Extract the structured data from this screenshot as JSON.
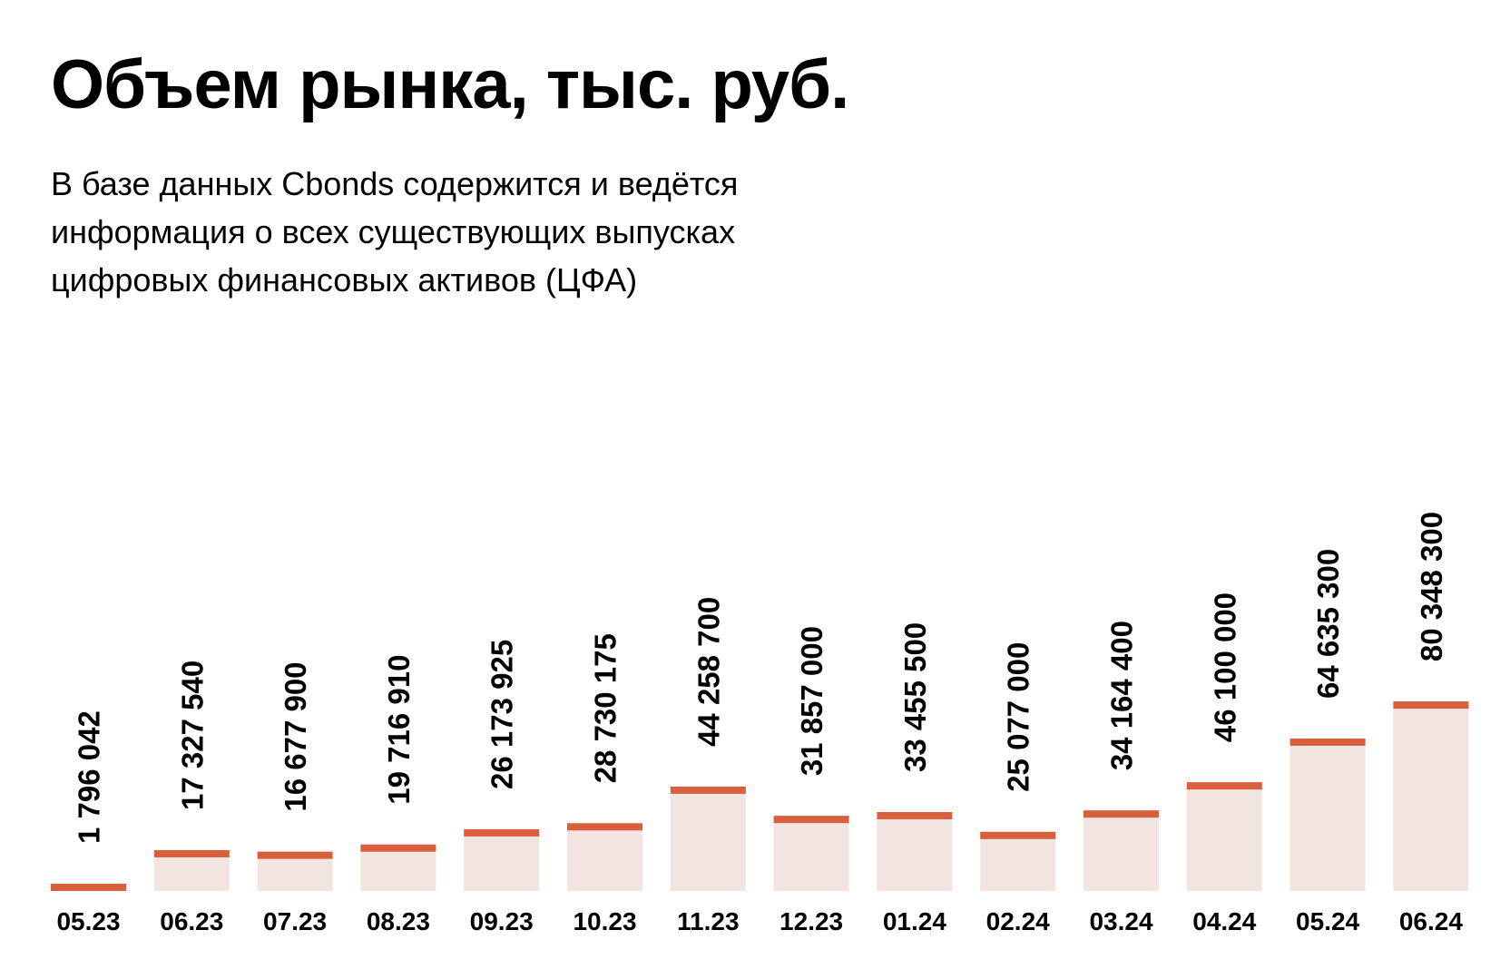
{
  "header": {
    "title": "Объем рынка, тыс. руб.",
    "subtitle_lines": [
      "В базе данных Cbonds содержится и ведётся",
      "информация о всех существующих выпусках",
      "цифровых финансовых активов (ЦФА)"
    ]
  },
  "colors": {
    "bar_fill": "#f2e4e0",
    "bar_top": "#d9603d"
  },
  "chart_data": {
    "type": "bar",
    "title": "Объем рынка, тыс. руб.",
    "categories": [
      "05.23",
      "06.23",
      "07.23",
      "08.23",
      "09.23",
      "10.23",
      "11.23",
      "12.23",
      "01.24",
      "02.24",
      "03.24",
      "04.24",
      "05.24",
      "06.24"
    ],
    "values": [
      1796042,
      17327540,
      16677900,
      19716910,
      26173925,
      28730175,
      44258700,
      31857000,
      33455500,
      25077000,
      34164400,
      46100000,
      64635300,
      80348300
    ],
    "value_labels": [
      "1 796 042",
      "17 327 540",
      "16 677 900",
      "19 716 910",
      "26 173 925",
      "28 730 175",
      "44 258 700",
      "31 857 000",
      "33 455 500",
      "25 077 000",
      "34 164 400",
      "46 100 000",
      "64 635 300",
      "80 348 300"
    ],
    "xlabel": "",
    "ylabel": "",
    "ylim": [
      0,
      100000000
    ],
    "grid": false,
    "legend": "none"
  }
}
